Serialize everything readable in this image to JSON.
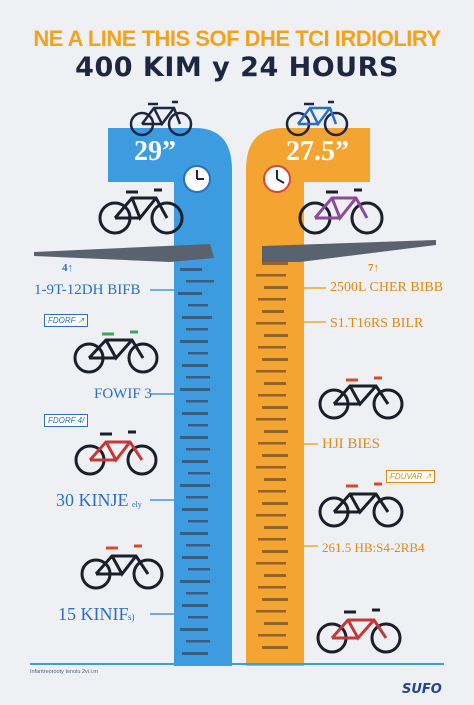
{
  "header": {
    "title_line1": "NE A LINE THIS SOF DHE TCI IRDIOLIRY",
    "title_line2": "400 KIM y 24 HOURS"
  },
  "left_column": {
    "wheel_label": "29”",
    "arrow_note": "4↑",
    "label_1": "1-9T-12DH BIFB",
    "tag_1": "FDORF ↗",
    "label_2": "FOWIF 3",
    "tag_2": "FDORF 4/",
    "label_3": "30 KINJE",
    "label_3_suffix": "ely",
    "label_4": "15 KINIF",
    "label_4_suffix": "s)"
  },
  "right_column": {
    "wheel_label": "27.5”",
    "arrow_note": "7↑",
    "label_1": "2500L CHER BIBB",
    "label_2": "S1.T16RS BILR",
    "label_3": "HJI BIES",
    "tag_1": "FDUVAR ↗",
    "label_4": "261.5 HB:S4-2RB4"
  },
  "footer": {
    "caption": "Infantreorooty tenoiu 2vi.i.m",
    "logo": "SUFO"
  },
  "colors": {
    "blue": "#3d9be0",
    "orange": "#f4a531",
    "navy": "#1d2742",
    "background": "#eef0f3"
  }
}
